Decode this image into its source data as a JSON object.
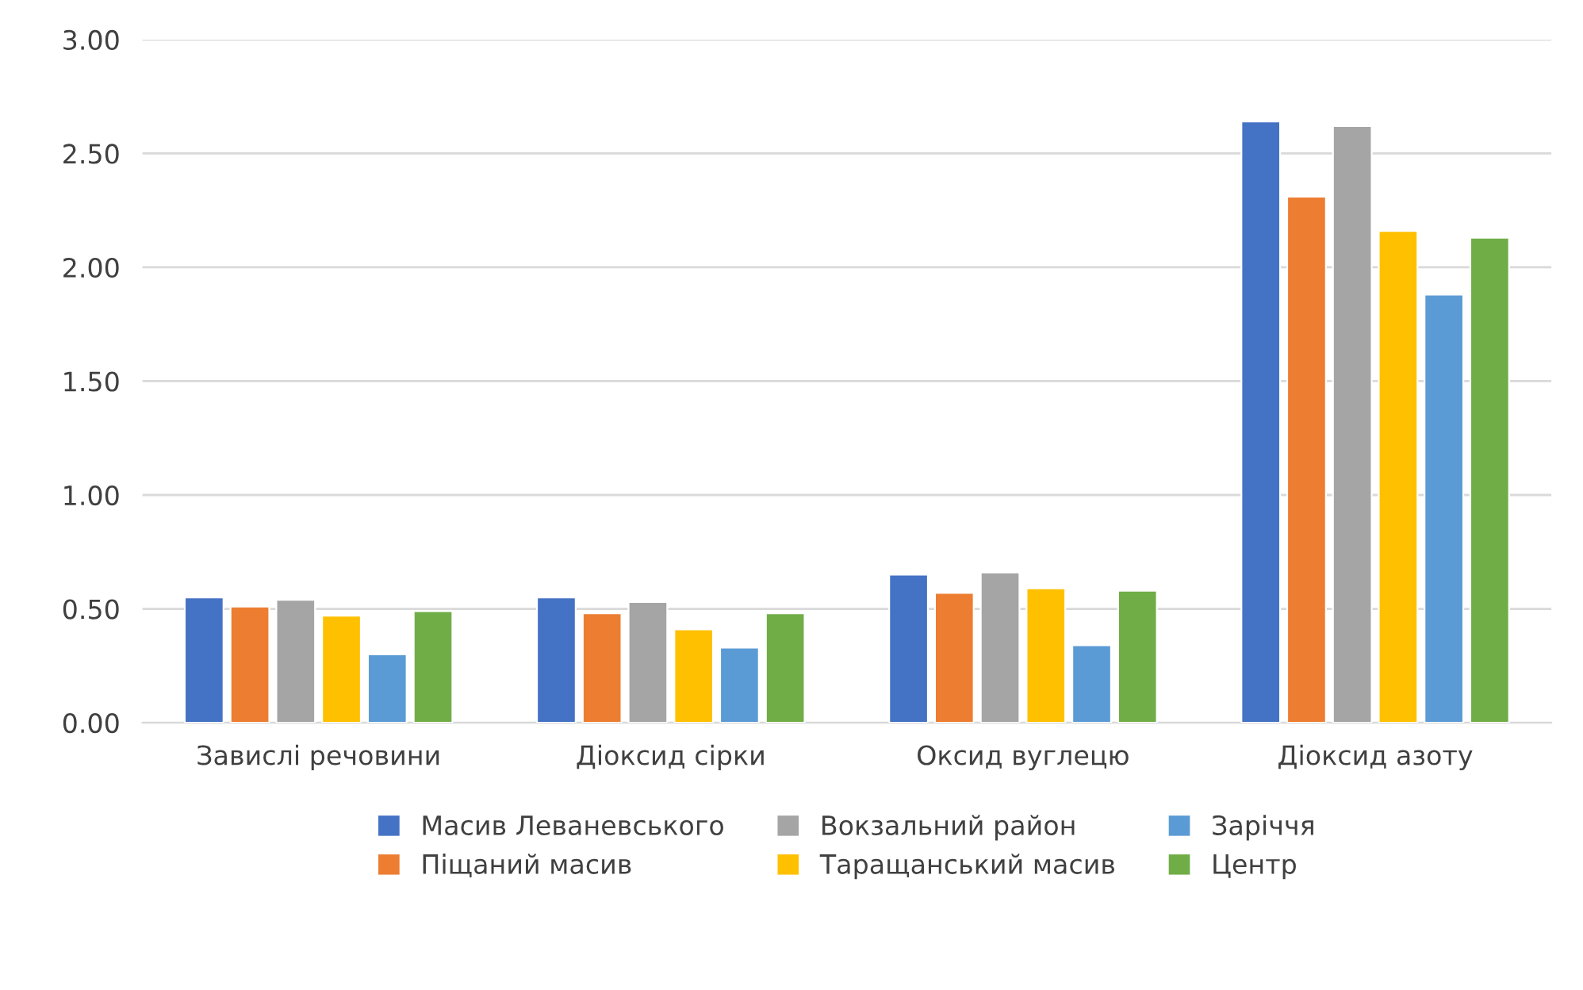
{
  "chart_data": {
    "type": "bar",
    "categories": [
      "Завислі речовини",
      "Діоксид сірки",
      "Оксид вуглецю",
      "Діоксид азоту"
    ],
    "series": [
      {
        "name": "Масив Леваневського",
        "color": "#4472c4",
        "values": [
          0.55,
          0.55,
          0.65,
          2.64
        ]
      },
      {
        "name": "Піщаний масив",
        "color": "#ed7d31",
        "values": [
          0.51,
          0.48,
          0.57,
          2.31
        ]
      },
      {
        "name": "Вокзальний район",
        "color": "#a5a5a5",
        "values": [
          0.54,
          0.53,
          0.66,
          2.62
        ]
      },
      {
        "name": "Таращанський масив",
        "color": "#ffc000",
        "values": [
          0.47,
          0.41,
          0.59,
          2.16
        ]
      },
      {
        "name": "Заріччя",
        "color": "#5b9bd5",
        "values": [
          0.3,
          0.33,
          0.34,
          1.88
        ]
      },
      {
        "name": "Центр",
        "color": "#70ad47",
        "values": [
          0.49,
          0.48,
          0.58,
          2.13
        ]
      }
    ],
    "ylim": [
      0,
      3
    ],
    "yticks": [
      {
        "value": 0,
        "label": "0.00"
      },
      {
        "value": 0.5,
        "label": "0.50"
      },
      {
        "value": 1,
        "label": "1.00"
      },
      {
        "value": 1.5,
        "label": "1.50"
      },
      {
        "value": 2,
        "label": "2.00"
      },
      {
        "value": 2.5,
        "label": "2.50"
      },
      {
        "value": 3,
        "label": "3.00"
      }
    ],
    "grid": "y",
    "legend": "bottom"
  }
}
